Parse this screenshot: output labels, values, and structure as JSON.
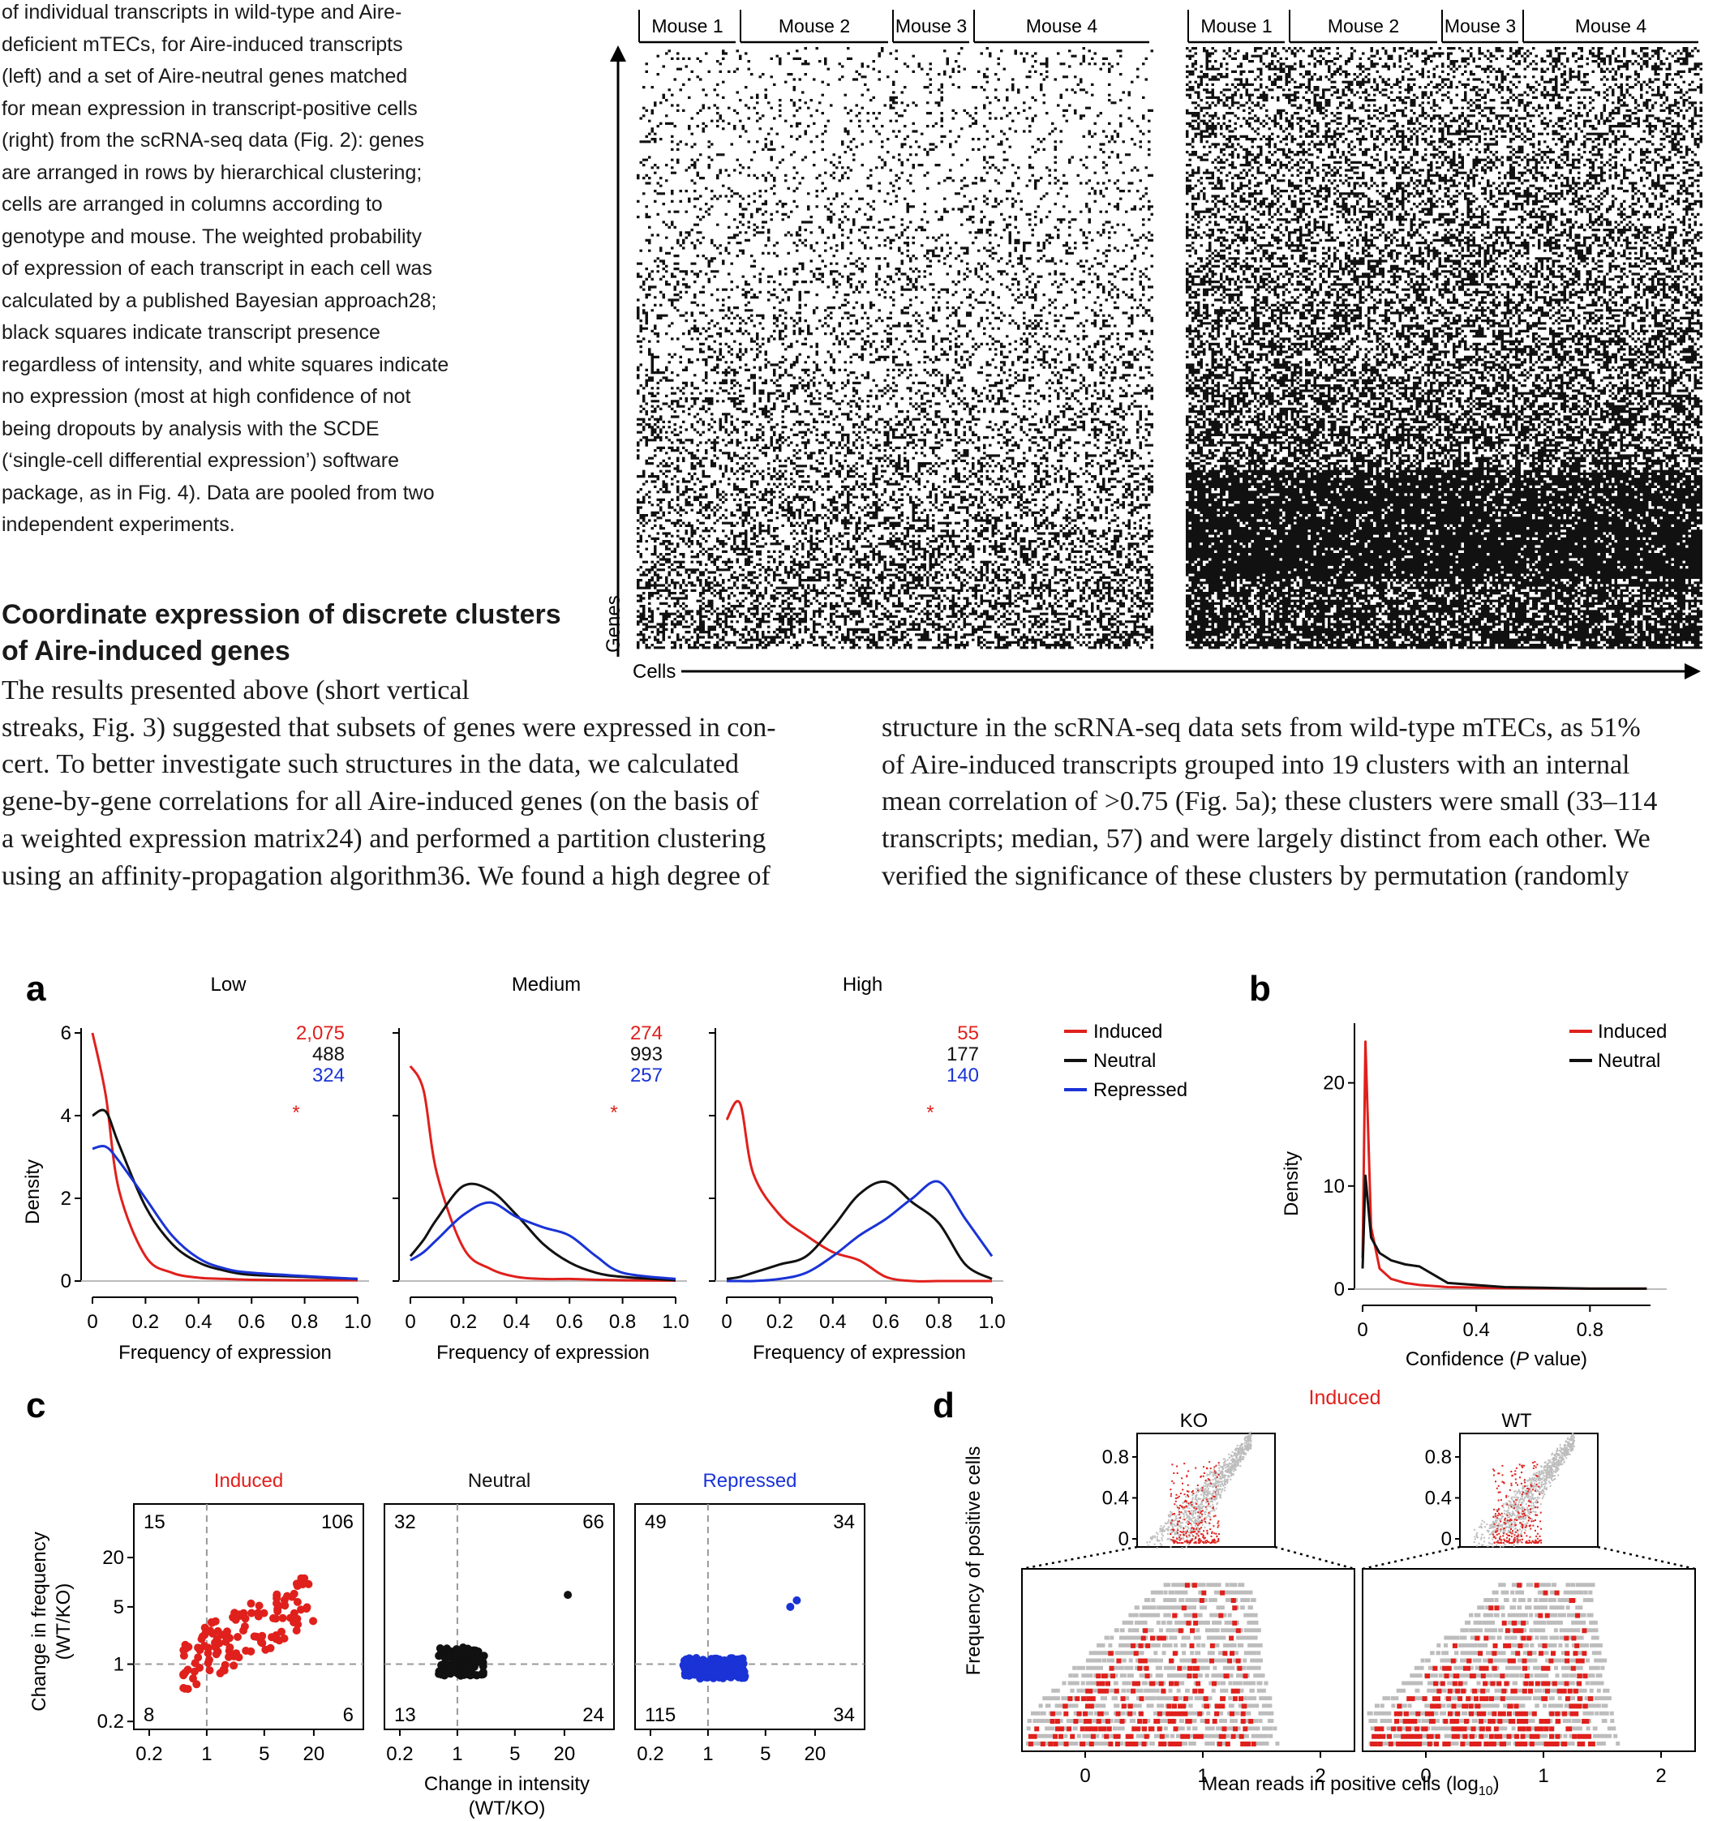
{
  "caption": {
    "lines": [
      "of individual transcripts in wild-type and Aire-",
      "deficient mTECs, for Aire-induced transcripts",
      "(left) and a set of Aire-neutral genes matched",
      "for mean expression in transcript-positive cells",
      "(right) from the scRNA-seq data (Fig. 2): genes",
      "are arranged in rows by hierarchical clustering;",
      "cells are arranged in columns according to",
      "genotype and mouse. The weighted probability",
      "of expression of each transcript in each cell was",
      "calculated by a published Bayesian approach28;",
      "black squares indicate transcript presence",
      "regardless of intensity, and white squares indicate",
      "no expression (most at high confidence of not",
      "being dropouts by analysis with the SCDE",
      "(‘single-cell differential expression’) software",
      "package, as in Fig. 4). Data are pooled from two",
      "independent experiments."
    ]
  },
  "heatmap": {
    "mouse_labels": [
      "Mouse 1",
      "Mouse 2",
      "Mouse 3",
      "Mouse 4"
    ],
    "y_axis": "Genes",
    "x_axis": "Cells"
  },
  "section": {
    "heading_line1": "Coordinate expression of discrete clusters",
    "heading_line2": "of Aire-induced genes",
    "left_lines": [
      "The results presented above (short vertical",
      "streaks, Fig. 3) suggested that subsets of genes were expressed in con-",
      "cert. To better investigate such structures in the data, we calculated",
      "gene-by-gene correlations for all Aire-induced genes (on the basis of",
      "a weighted expression matrix24) and performed a partition clustering",
      "using an affinity-propagation algorithm36. We found a high degree of"
    ],
    "right_lines": [
      "structure in the scRNA-seq data sets from wild-type mTECs, as 51%",
      "of Aire-induced transcripts grouped into 19 clusters with an internal",
      "mean correlation of >0.75 (Fig. 5a); these clusters were small (33–114",
      "transcripts; median, 57) and were largely distinct from each other. We",
      "verified the significance of these clusters by permutation (randomly"
    ]
  },
  "panel_a": {
    "letter": "a",
    "ylabel": "Density",
    "xlabel": "Frequency of expression",
    "y_ticks": [
      "0",
      "2",
      "4",
      "6"
    ],
    "x_ticks": [
      "0",
      "0.2",
      "0.4",
      "0.6",
      "0.8",
      "1.0"
    ],
    "star": "*",
    "legend": [
      "Induced",
      "Neutral",
      "Repressed"
    ],
    "subplots": [
      {
        "title": "Low",
        "counts": [
          "2,075",
          "488",
          "324"
        ]
      },
      {
        "title": "Medium",
        "counts": [
          "274",
          "993",
          "257"
        ]
      },
      {
        "title": "High",
        "counts": [
          "55",
          "177",
          "140"
        ]
      }
    ]
  },
  "panel_b": {
    "letter": "b",
    "ylabel": "Density",
    "xlabel_main": "Confidence (",
    "xlabel_italic": "P",
    "xlabel_end": " value)",
    "y_ticks": [
      "0",
      "10",
      "20"
    ],
    "x_ticks": [
      "0",
      "0.4",
      "0.8"
    ],
    "legend": [
      "Induced",
      "Neutral"
    ]
  },
  "panel_c": {
    "letter": "c",
    "ylabel_line1": "Change in frequency",
    "ylabel_line2": "(WT/KO)",
    "xlabel_line1": "Change in intensity",
    "xlabel_line2": "(WT/KO)",
    "y_ticks": [
      "0.2",
      "1",
      "5",
      "20"
    ],
    "x_ticks": [
      "0.2",
      "1",
      "5",
      "20"
    ],
    "subplots": [
      {
        "title": "Induced",
        "quadrants": [
          "15",
          "106",
          "8",
          "6"
        ]
      },
      {
        "title": "Neutral",
        "quadrants": [
          "32",
          "66",
          "13",
          "24"
        ]
      },
      {
        "title": "Repressed",
        "quadrants": [
          "49",
          "34",
          "115",
          "34"
        ]
      }
    ]
  },
  "panel_d": {
    "letter": "d",
    "title": "Induced",
    "ylabel": "Frequency of positive cells",
    "xlabel": "Mean reads in positive cells (log",
    "xlabel_sub": "10",
    "xlabel_end": ")",
    "inset_y_ticks": [
      "0",
      "0.4",
      "0.8"
    ],
    "x_ticks": [
      "0",
      "1",
      "2"
    ],
    "subplots": [
      {
        "title": "KO"
      },
      {
        "title": "WT"
      }
    ]
  },
  "colors": {
    "induced": "#e0201c",
    "neutral": "#111111",
    "repressed": "#1a33d6",
    "grey_points": "#bdbdbd"
  },
  "chart_data": [
    {
      "type": "line",
      "panel": "a",
      "title": "Low",
      "xlabel": "Frequency of expression",
      "ylabel": "Density",
      "xlim": [
        0,
        1.0
      ],
      "ylim": [
        0,
        6
      ],
      "x": [
        0,
        0.05,
        0.1,
        0.2,
        0.3,
        0.4,
        0.5,
        0.6,
        0.8,
        1.0
      ],
      "series": [
        {
          "name": "Induced",
          "values": [
            6.0,
            4.5,
            2.2,
            0.6,
            0.2,
            0.08,
            0.05,
            0.03,
            0.02,
            0.02
          ]
        },
        {
          "name": "Neutral",
          "values": [
            4.0,
            4.1,
            3.3,
            1.8,
            0.9,
            0.45,
            0.25,
            0.15,
            0.1,
            0.05
          ]
        },
        {
          "name": "Repressed",
          "values": [
            3.2,
            3.25,
            2.9,
            2.0,
            1.1,
            0.55,
            0.3,
            0.2,
            0.12,
            0.05
          ]
        }
      ]
    },
    {
      "type": "line",
      "panel": "a",
      "title": "Medium",
      "xlabel": "Frequency of expression",
      "ylabel": "Density",
      "xlim": [
        0,
        1.0
      ],
      "ylim": [
        0,
        6
      ],
      "x": [
        0,
        0.05,
        0.1,
        0.2,
        0.3,
        0.4,
        0.5,
        0.6,
        0.7,
        0.8,
        1.0
      ],
      "series": [
        {
          "name": "Induced",
          "values": [
            5.2,
            4.6,
            2.6,
            0.8,
            0.3,
            0.1,
            0.05,
            0.05,
            0.03,
            0.02,
            0.01
          ]
        },
        {
          "name": "Neutral",
          "values": [
            0.6,
            1.0,
            1.5,
            2.3,
            2.2,
            1.6,
            0.9,
            0.45,
            0.2,
            0.1,
            0.02
          ]
        },
        {
          "name": "Repressed",
          "values": [
            0.5,
            0.7,
            1.0,
            1.6,
            1.9,
            1.55,
            1.3,
            1.1,
            0.6,
            0.2,
            0.05
          ]
        }
      ]
    },
    {
      "type": "line",
      "panel": "a",
      "title": "High",
      "xlabel": "Frequency of expression",
      "ylabel": "Density",
      "xlim": [
        0,
        1.0
      ],
      "ylim": [
        0,
        6
      ],
      "x": [
        0,
        0.05,
        0.1,
        0.2,
        0.3,
        0.4,
        0.5,
        0.6,
        0.7,
        0.8,
        0.9,
        1.0
      ],
      "series": [
        {
          "name": "Induced",
          "values": [
            3.9,
            4.3,
            2.6,
            1.6,
            1.1,
            0.7,
            0.5,
            0.1,
            0.0,
            0.0,
            0.0,
            0.0
          ]
        },
        {
          "name": "Neutral",
          "values": [
            0.05,
            0.1,
            0.2,
            0.4,
            0.6,
            1.3,
            2.1,
            2.4,
            1.9,
            1.4,
            0.4,
            0.05
          ]
        },
        {
          "name": "Repressed",
          "values": [
            0.0,
            0.0,
            0.0,
            0.05,
            0.2,
            0.6,
            1.1,
            1.5,
            2.0,
            2.4,
            1.5,
            0.6
          ]
        }
      ]
    },
    {
      "type": "line",
      "panel": "b",
      "xlabel": "Confidence (P value)",
      "ylabel": "Density",
      "xlim": [
        0,
        1.0
      ],
      "ylim": [
        0,
        25
      ],
      "x": [
        0,
        0.01,
        0.03,
        0.06,
        0.1,
        0.15,
        0.2,
        0.3,
        0.5,
        0.8,
        1.0
      ],
      "series": [
        {
          "name": "Induced",
          "values": [
            3,
            24,
            6,
            2,
            1,
            0.6,
            0.4,
            0.2,
            0.1,
            0.05,
            0.05
          ]
        },
        {
          "name": "Neutral",
          "values": [
            2,
            11,
            5,
            3.5,
            2.8,
            2.4,
            2.2,
            0.6,
            0.2,
            0.05,
            0.05
          ]
        }
      ]
    }
  ]
}
